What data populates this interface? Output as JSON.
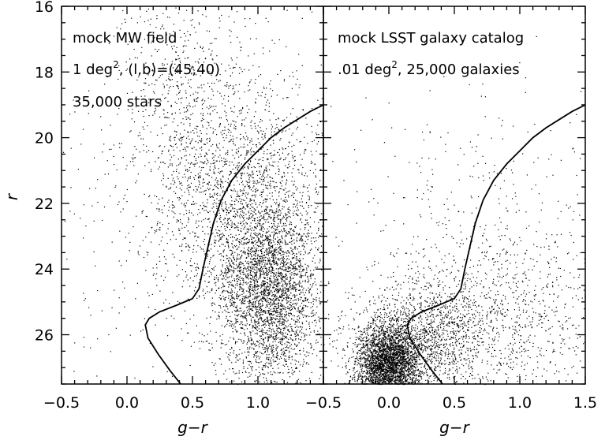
{
  "chart_data": [
    {
      "type": "scatter",
      "panel": "left",
      "annotations": [
        "mock MW field",
        "1 deg",
        "2",
        ", (l,b)=(45,40)",
        "35,000 stars"
      ],
      "xlabel": "g−r",
      "ylabel": "r",
      "xlim": [
        -0.5,
        1.5
      ],
      "ylim": [
        27.5,
        16
      ],
      "y_inverted": true,
      "x_ticks": [
        -0.5,
        0.0,
        0.5,
        1.0
      ],
      "x_tick_labels": [
        "−0.5",
        "0.0",
        "0.5",
        "1.0"
      ],
      "y_ticks": [
        16,
        18,
        20,
        22,
        24,
        26
      ],
      "y_tick_labels": [
        "16",
        "18",
        "20",
        "22",
        "24",
        "26"
      ],
      "grid": false,
      "series": [
        {
          "kind": "scatter",
          "point_count": 35000,
          "color": "#000000",
          "clusters": [
            {
              "cx": 1.08,
              "cy": 24.6,
              "sx": 0.2,
              "sy": 1.4,
              "weight": 0.55
            },
            {
              "cx": 0.85,
              "cy": 21.5,
              "sx": 0.35,
              "sy": 1.8,
              "weight": 0.3
            },
            {
              "cx": 0.4,
              "cy": 18.5,
              "sx": 0.25,
              "sy": 1.6,
              "weight": 0.08
            },
            {
              "cx": 0.5,
              "cy": 23.0,
              "sx": 0.7,
              "sy": 3.0,
              "weight": 0.07
            }
          ]
        },
        {
          "kind": "line",
          "x": [
            0.41,
            0.33,
            0.24,
            0.16,
            0.14,
            0.17,
            0.25,
            0.38,
            0.5,
            0.55,
            0.58,
            0.62,
            0.66,
            0.72,
            0.8,
            0.9,
            1.0,
            1.1,
            1.2,
            1.3,
            1.4,
            1.5
          ],
          "y": [
            27.5,
            27.1,
            26.6,
            26.1,
            25.7,
            25.5,
            25.3,
            25.1,
            24.9,
            24.6,
            24.0,
            23.3,
            22.6,
            21.9,
            21.3,
            20.8,
            20.4,
            20.0,
            19.7,
            19.45,
            19.2,
            19.0
          ],
          "color": "#000000"
        }
      ]
    },
    {
      "type": "scatter",
      "panel": "right",
      "annotations": [
        "mock LSST galaxy catalog",
        ".01 deg",
        "2",
        ", 25,000 galaxies"
      ],
      "xlabel": "g−r",
      "ylabel": "",
      "xlim": [
        -0.5,
        1.5
      ],
      "ylim": [
        27.5,
        16
      ],
      "y_inverted": true,
      "x_ticks": [
        -0.5,
        0.0,
        0.5,
        1.0,
        1.5
      ],
      "x_tick_labels": [
        "−0.5",
        "0.0",
        "0.5",
        "1.0",
        "1.5"
      ],
      "grid": false,
      "series": [
        {
          "kind": "scatter",
          "point_count": 25000,
          "color": "#000000",
          "clusters": [
            {
              "cx": 0.0,
              "cy": 26.9,
              "sx": 0.12,
              "sy": 0.6,
              "weight": 0.55
            },
            {
              "cx": 0.3,
              "cy": 26.0,
              "sx": 0.3,
              "sy": 0.9,
              "weight": 0.25
            },
            {
              "cx": 0.9,
              "cy": 25.5,
              "sx": 0.45,
              "sy": 1.4,
              "weight": 0.15
            },
            {
              "cx": 0.7,
              "cy": 22.0,
              "sx": 0.5,
              "sy": 2.0,
              "weight": 0.05
            }
          ]
        },
        {
          "kind": "line",
          "x": [
            0.41,
            0.33,
            0.24,
            0.16,
            0.14,
            0.17,
            0.25,
            0.38,
            0.5,
            0.55,
            0.58,
            0.62,
            0.66,
            0.72,
            0.8,
            0.9,
            1.0,
            1.1,
            1.2,
            1.3,
            1.4,
            1.5
          ],
          "y": [
            27.5,
            27.1,
            26.6,
            26.1,
            25.7,
            25.5,
            25.3,
            25.1,
            24.9,
            24.6,
            24.0,
            23.3,
            22.6,
            21.9,
            21.3,
            20.8,
            20.4,
            20.0,
            19.7,
            19.45,
            19.2,
            19.0
          ],
          "color": "#000000"
        }
      ]
    }
  ]
}
